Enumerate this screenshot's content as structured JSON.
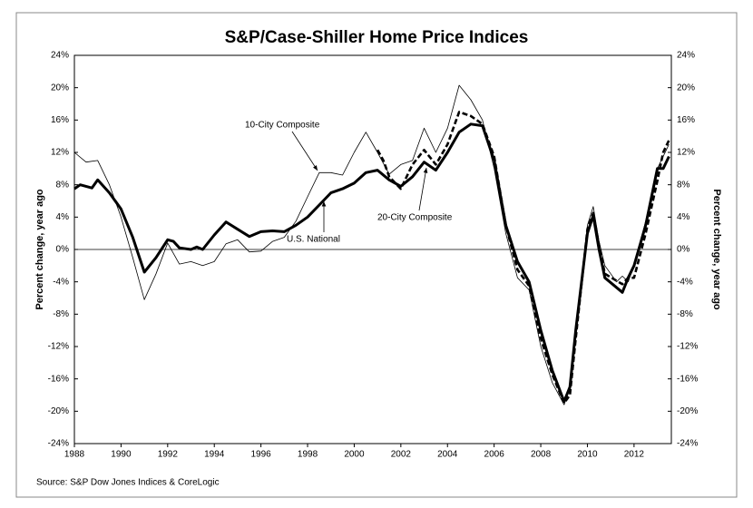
{
  "chart_data": {
    "type": "line",
    "title": "S&P/Case-Shiller Home Price Indices",
    "ylabel": "Percent change, year ago",
    "y2label": "Percent change, year ago",
    "source": "Source: S&P Dow Jones Indices & CoreLogic",
    "xlim": [
      1988,
      2013.6
    ],
    "xticks": [
      1988,
      1990,
      1992,
      1994,
      1996,
      1998,
      2000,
      2002,
      2004,
      2006,
      2008,
      2010,
      2012
    ],
    "ylim": [
      -24,
      24
    ],
    "yticks": [
      {
        "value": -24,
        "label": "-24%"
      },
      {
        "value": -20,
        "label": "-20%"
      },
      {
        "value": -16,
        "label": "-16%"
      },
      {
        "value": -12,
        "label": "-12%"
      },
      {
        "value": -8,
        "label": "-8%"
      },
      {
        "value": -4,
        "label": "-4%"
      },
      {
        "value": 0,
        "label": "0%"
      },
      {
        "value": 4,
        "label": "4%"
      },
      {
        "value": 8,
        "label": "8%"
      },
      {
        "value": 12,
        "label": "12%"
      },
      {
        "value": 16,
        "label": "16%"
      },
      {
        "value": 20,
        "label": "20%"
      },
      {
        "value": 24,
        "label": "24%"
      }
    ],
    "y2lim": [
      -24,
      24
    ],
    "y2ticks": [
      {
        "value": -24,
        "label": "-24%"
      },
      {
        "value": -20,
        "label": "-20%"
      },
      {
        "value": -16,
        "label": "-16%"
      },
      {
        "value": -12,
        "label": "-12%"
      },
      {
        "value": -8,
        "label": "-8%"
      },
      {
        "value": -4,
        "label": "-4%"
      },
      {
        "value": 0,
        "label": "0%"
      },
      {
        "value": 4,
        "label": "4%"
      },
      {
        "value": 8,
        "label": "8%"
      },
      {
        "value": 12,
        "label": "12%"
      },
      {
        "value": 16,
        "label": "16%"
      },
      {
        "value": 20,
        "label": "20%"
      },
      {
        "value": 24,
        "label": "24%"
      }
    ],
    "series": [
      {
        "name": "10-City Composite",
        "color": "#000000",
        "style": "thin",
        "x": [
          1988,
          1988.5,
          1989,
          1989.5,
          1990,
          1990.5,
          1991,
          1991.5,
          1992,
          1992.5,
          1993,
          1993.5,
          1994,
          1994.5,
          1995,
          1995.5,
          1996,
          1996.5,
          1997,
          1997.5,
          1998,
          1998.5,
          1999,
          1999.5,
          2000,
          2000.5,
          2001,
          2001.5,
          2002,
          2002.5,
          2003,
          2003.5,
          2004,
          2004.5,
          2005,
          2005.5,
          2006,
          2006.5,
          2007,
          2007.5,
          2008,
          2008.5,
          2009,
          2009.25,
          2009.5,
          2010,
          2010.25,
          2010.5,
          2010.75,
          2011.25,
          2011.5,
          2011.75,
          2012,
          2012.5,
          2013,
          2013.5
        ],
        "values": [
          12,
          10.8,
          11,
          8,
          4,
          -1,
          -6.2,
          -3,
          0.8,
          -1.8,
          -1.5,
          -2,
          -1.5,
          0.7,
          1.2,
          -0.3,
          -0.2,
          1,
          1.5,
          3.5,
          6.5,
          9.5,
          9.5,
          9.2,
          12,
          14.5,
          12,
          9.3,
          10.5,
          11,
          15,
          12,
          15,
          20.3,
          18.5,
          16,
          10,
          2,
          -3.5,
          -5,
          -12,
          -16.5,
          -19.2,
          -17,
          -10,
          3,
          5.3,
          1,
          -2,
          -4,
          -3.3,
          -4,
          -2,
          3.5,
          10,
          13
        ]
      },
      {
        "name": "20-City Composite",
        "color": "#000000",
        "style": "dashed",
        "x": [
          2001,
          2001.25,
          2001.5,
          2002,
          2002.5,
          2003,
          2003.5,
          2004,
          2004.5,
          2005,
          2005.5,
          2006,
          2006.5,
          2007,
          2007.5,
          2008,
          2008.5,
          2009,
          2009.25,
          2009.5,
          2010,
          2010.25,
          2010.5,
          2010.75,
          2011.5,
          2011.75,
          2012,
          2012.5,
          2013,
          2013.25,
          2013.5
        ],
        "values": [
          12.3,
          11,
          9,
          7.5,
          10.5,
          12.3,
          10.5,
          13,
          17,
          16.5,
          15.5,
          11.5,
          3,
          -2.5,
          -4.5,
          -11,
          -15.5,
          -19,
          -18,
          -11,
          2.5,
          4.5,
          0.5,
          -3,
          -4.3,
          -3.5,
          -3.5,
          2,
          8.5,
          12,
          13.5
        ]
      },
      {
        "name": "U.S. National",
        "color": "#000000",
        "style": "thick",
        "x": [
          1988,
          1988.25,
          1988.75,
          1989,
          1989.5,
          1990,
          1990.5,
          1991,
          1991.5,
          1992,
          1992.25,
          1992.5,
          1993,
          1993.25,
          1993.5,
          1994,
          1994.5,
          1995,
          1995.5,
          1996,
          1996.5,
          1997,
          1997.5,
          1998,
          1998.5,
          1999,
          1999.5,
          2000,
          2000.5,
          2001,
          2001.5,
          2002,
          2002.5,
          2003,
          2003.5,
          2004,
          2004.5,
          2005,
          2005.5,
          2006,
          2006.5,
          2007,
          2007.5,
          2008,
          2008.5,
          2009,
          2009.25,
          2009.5,
          2010,
          2010.25,
          2010.5,
          2010.75,
          2011.5,
          2011.75,
          2012,
          2012.5,
          2013,
          2013.25,
          2013.5
        ],
        "values": [
          7.5,
          8,
          7.6,
          8.6,
          7,
          5,
          1.5,
          -2.8,
          -1,
          1.2,
          1,
          0.2,
          0,
          0.3,
          0,
          1.8,
          3.4,
          2.5,
          1.6,
          2.2,
          2.3,
          2.2,
          3,
          4,
          5.5,
          7,
          7.5,
          8.2,
          9.5,
          9.8,
          8.6,
          7.8,
          9,
          10.8,
          9.8,
          12,
          14.5,
          15.5,
          15.3,
          11,
          3,
          -1.5,
          -4,
          -10,
          -15,
          -18.8,
          -17,
          -10,
          2,
          4.2,
          0,
          -3.5,
          -5.3,
          -3.5,
          -2,
          3,
          10,
          10,
          11.5
        ]
      }
    ]
  }
}
